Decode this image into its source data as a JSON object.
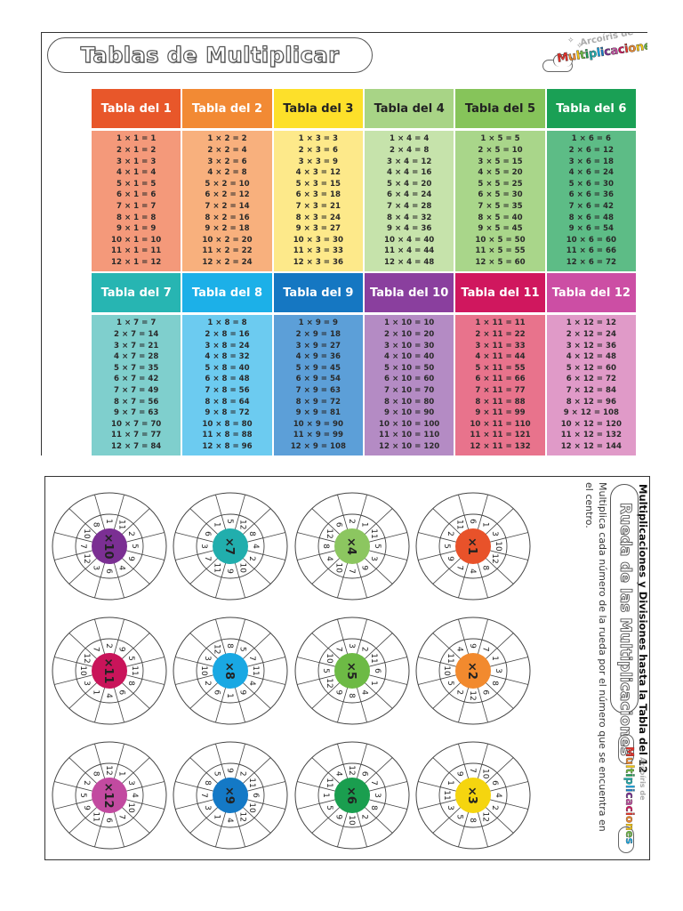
{
  "page1": {
    "title": "Tablas de Multiplicar",
    "logo": {
      "small_text": "Arcoíris de",
      "rainbow_text": "Multiplicaciones"
    },
    "tables": [
      {
        "label": "Tabla del 1",
        "n": 1,
        "header_color": "#e8572a",
        "body_color": "#f4997a",
        "header_text_color": "#ffffff",
        "rows": [
          "1 × 1 = 1",
          "2 × 1 = 2",
          "3 × 1 = 3",
          "4 × 1 = 4",
          "5 × 1 = 5",
          "6 × 1 = 6",
          "7 × 1 = 7",
          "8 × 1 = 8",
          "9 × 1 = 9",
          "10 × 1 = 10",
          "11 × 1 = 11",
          "12 × 1 = 12"
        ]
      },
      {
        "label": "Tabla del 2",
        "n": 2,
        "header_color": "#f28a34",
        "body_color": "#f8b07d",
        "header_text_color": "#ffffff",
        "rows": [
          "1 × 2 = 2",
          "2 × 2 = 4",
          "3 × 2 = 6",
          "4 × 2 = 8",
          "5 × 2 = 10",
          "6 × 2 = 12",
          "7 × 2 = 14",
          "8 × 2 = 16",
          "9 × 2 = 18",
          "10 × 2 = 20",
          "11 × 2 = 22",
          "12 × 2 = 24"
        ]
      },
      {
        "label": "Tabla del 3",
        "n": 3,
        "header_color": "#fde02a",
        "body_color": "#fde98a",
        "header_text_color": "#222222",
        "rows": [
          "1 × 3 = 3",
          "2 × 3 = 6",
          "3 × 3 = 9",
          "4 × 3 = 12",
          "5 × 3 = 15",
          "6 × 3 = 18",
          "7 × 3 = 21",
          "8 × 3 = 24",
          "9 × 3 = 27",
          "10 × 3 = 30",
          "11 × 3 = 33",
          "12 × 3 = 36"
        ]
      },
      {
        "label": "Tabla del 4",
        "n": 4,
        "header_color": "#a8d486",
        "body_color": "#c6e3ab",
        "header_text_color": "#222222",
        "rows": [
          "1 × 4 = 4",
          "2 × 4 = 8",
          "3 × 4 = 12",
          "4 × 4 = 16",
          "5 × 4 = 20",
          "6 × 4 = 24",
          "7 × 4 = 28",
          "8 × 4 = 32",
          "9 × 4 = 36",
          "10 × 4 = 40",
          "11 × 4 = 44",
          "12 × 4 = 48"
        ]
      },
      {
        "label": "Tabla del 5",
        "n": 5,
        "header_color": "#86c45a",
        "body_color": "#a9d68a",
        "header_text_color": "#222222",
        "rows": [
          "1 × 5 = 5",
          "2 × 5 = 10",
          "3 × 5 = 15",
          "4 × 5 = 20",
          "5 × 5 = 25",
          "6 × 5 = 30",
          "7 × 5 = 35",
          "8 × 5 = 40",
          "9 × 5 = 45",
          "10 × 5 = 50",
          "11 × 5 = 55",
          "12 × 5 = 60"
        ]
      },
      {
        "label": "Tabla del 6",
        "n": 6,
        "header_color": "#1aa055",
        "body_color": "#5dbc86",
        "header_text_color": "#ffffff",
        "rows": [
          "1 × 6 = 6",
          "2 × 6 = 12",
          "3 × 6 = 18",
          "4 × 6 = 24",
          "5 × 6 = 30",
          "6 × 6 = 36",
          "7 × 6 = 42",
          "8 × 6 = 48",
          "9 × 6 = 54",
          "10 × 6 = 60",
          "11 × 6 = 66",
          "12 × 6 = 72"
        ]
      },
      {
        "label": "Tabla del 7",
        "n": 7,
        "header_color": "#27b5b2",
        "body_color": "#7fcfcd",
        "header_text_color": "#ffffff",
        "rows": [
          "1 × 7 = 7",
          "2 × 7 = 14",
          "3 × 7 = 21",
          "4 × 7 = 28",
          "5 × 7 = 35",
          "6 × 7 = 42",
          "7 × 7 = 49",
          "8 × 7 = 56",
          "9 × 7 = 63",
          "10 × 7 = 70",
          "11 × 7 = 77",
          "12 × 7 = 84"
        ]
      },
      {
        "label": "Tabla del 8",
        "n": 8,
        "header_color": "#1cb0e8",
        "body_color": "#6ccbf0",
        "header_text_color": "#ffffff",
        "rows": [
          "1 × 8 = 8",
          "2 × 8 = 16",
          "3 × 8 = 24",
          "4 × 8 = 32",
          "5 × 8 = 40",
          "6 × 8 = 48",
          "7 × 8 = 56",
          "8 × 8 = 64",
          "9 × 8 = 72",
          "10 × 8 = 80",
          "11 × 8 = 88",
          "12 × 8 = 96"
        ]
      },
      {
        "label": "Tabla del 9",
        "n": 9,
        "header_color": "#1577c2",
        "body_color": "#5c9fd8",
        "header_text_color": "#ffffff",
        "rows": [
          "1 × 9 = 9",
          "2 × 9 = 18",
          "3 × 9 = 27",
          "4 × 9 = 36",
          "5 × 9 = 45",
          "6 × 9 = 54",
          "7 × 9 = 63",
          "8 × 9 = 72",
          "9 × 9 = 81",
          "10 × 9 = 90",
          "11 × 9 = 99",
          "12 × 9 = 108"
        ]
      },
      {
        "label": "Tabla del 10",
        "n": 10,
        "header_color": "#8a3f9e",
        "body_color": "#b48bc4",
        "header_text_color": "#ffffff",
        "rows": [
          "1 × 10 = 10",
          "2 × 10 = 20",
          "3 × 10 = 30",
          "4 × 10 = 40",
          "5 × 10 = 50",
          "6 × 10 = 60",
          "7 × 10 = 70",
          "8 × 10 = 80",
          "9 × 10 = 90",
          "10 × 10 = 100",
          "11 × 10 = 110",
          "12 × 10 = 120"
        ]
      },
      {
        "label": "Tabla del 11",
        "n": 11,
        "header_color": "#d0175e",
        "body_color": "#e8738c",
        "header_text_color": "#ffffff",
        "rows": [
          "1 × 11 = 11",
          "2 × 11 = 22",
          "3 × 11 = 33",
          "4 × 11 = 44",
          "5 × 11 = 55",
          "6 × 11 = 66",
          "7 × 11 = 77",
          "8 × 11 = 88",
          "9 × 11 = 99",
          "10 × 11 = 110",
          "11 × 11 = 121",
          "12 × 11 = 132"
        ]
      },
      {
        "label": "Tabla del 12",
        "n": 12,
        "header_color": "#cc4ea4",
        "body_color": "#e09ac8",
        "header_text_color": "#ffffff",
        "rows": [
          "1 × 12 = 12",
          "2 × 12 = 24",
          "3 × 12 = 36",
          "4 × 12 = 48",
          "5 × 12 = 60",
          "6 × 12 = 72",
          "7 × 12 = 84",
          "8 × 12 = 96",
          "9 × 12 = 108",
          "10 × 12 = 120",
          "11 × 12 = 132",
          "12 × 12 = 144"
        ]
      }
    ]
  },
  "page2": {
    "heading": "Multiplicaciones y Divisiones hasta la Tabla del 12",
    "title": "Rueda de las Multiplicaciones",
    "instructions_line1": "Multiplica cada número de la rueda por el número que se encuentra en",
    "instructions_line2": "el centro.",
    "logo": {
      "small_text": "Arcoíris de",
      "rainbow_text": "Multiplicaciones"
    },
    "wheels": [
      {
        "center": "×10",
        "color": "#7b2f93",
        "numbers": [
          "9",
          "4",
          "6",
          "3",
          "12",
          "7",
          "10",
          "8",
          "1",
          "11",
          "2",
          "5"
        ]
      },
      {
        "center": "×7",
        "color": "#21aead",
        "numbers": [
          "2",
          "10",
          "9",
          "11",
          "7",
          "3",
          "6",
          "1",
          "5",
          "12",
          "8",
          "4"
        ]
      },
      {
        "center": "×4",
        "color": "#8cc660",
        "numbers": [
          "3",
          "9",
          "7",
          "10",
          "4",
          "8",
          "12",
          "6",
          "2",
          "1",
          "11",
          "5"
        ]
      },
      {
        "center": "×1",
        "color": "#e8522a",
        "numbers": [
          "12",
          "8",
          "4",
          "7",
          "9",
          "5",
          "2",
          "11",
          "6",
          "1",
          "3",
          "10"
        ]
      },
      {
        "center": "×11",
        "color": "#c9145a",
        "numbers": [
          "8",
          "6",
          "4",
          "1",
          "3",
          "10",
          "12",
          "7",
          "2",
          "9",
          "5",
          "11"
        ]
      },
      {
        "center": "×8",
        "color": "#19a8e3",
        "numbers": [
          "4",
          "9",
          "1",
          "6",
          "2",
          "10",
          "3",
          "12",
          "8",
          "5",
          "7",
          "11"
        ]
      },
      {
        "center": "×5",
        "color": "#6dba45",
        "numbers": [
          "1",
          "4",
          "8",
          "9",
          "12",
          "5",
          "10",
          "7",
          "3",
          "2",
          "11",
          "6"
        ]
      },
      {
        "center": "×2",
        "color": "#f28a2e",
        "numbers": [
          "8",
          "6",
          "12",
          "2",
          "5",
          "10",
          "11",
          "4",
          "9",
          "7",
          "1",
          "3"
        ]
      },
      {
        "center": "×12",
        "color": "#c24aa0",
        "numbers": [
          "10",
          "7",
          "6",
          "11",
          "9",
          "5",
          "2",
          "8",
          "12",
          "1",
          "3",
          "4"
        ]
      },
      {
        "center": "×9",
        "color": "#1479c6",
        "numbers": [
          "10",
          "12",
          "4",
          "1",
          "3",
          "7",
          "8",
          "5",
          "9",
          "2",
          "11",
          "6"
        ]
      },
      {
        "center": "×6",
        "color": "#1a9e4f",
        "numbers": [
          "8",
          "2",
          "10",
          "9",
          "5",
          "1",
          "11",
          "4",
          "12",
          "6",
          "7",
          "3"
        ]
      },
      {
        "center": "×3",
        "color": "#f5d50f",
        "numbers": [
          "2",
          "12",
          "8",
          "5",
          "3",
          "11",
          "1",
          "9",
          "7",
          "10",
          "6",
          "4"
        ]
      }
    ]
  }
}
